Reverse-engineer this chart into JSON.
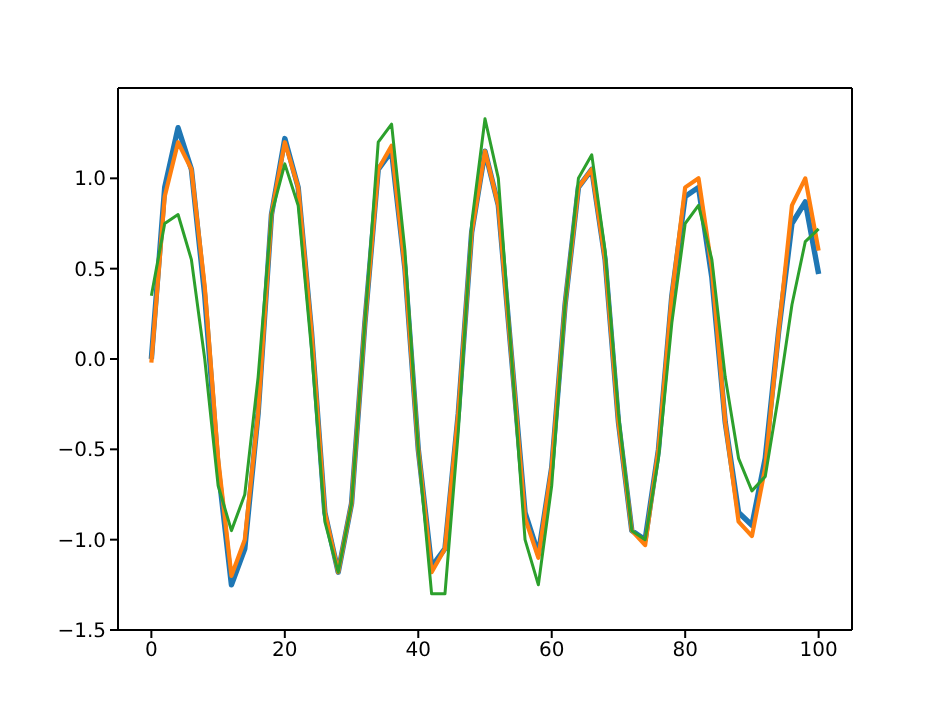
{
  "chart_data": {
    "type": "line",
    "x": [
      0,
      2,
      4,
      6,
      8,
      10,
      12,
      14,
      16,
      18,
      20,
      22,
      24,
      26,
      28,
      30,
      32,
      34,
      36,
      38,
      40,
      42,
      44,
      46,
      48,
      50,
      52,
      54,
      56,
      58,
      60,
      62,
      64,
      66,
      68,
      70,
      72,
      74,
      76,
      78,
      80,
      82,
      84,
      86,
      88,
      90,
      92,
      94,
      96,
      98,
      100
    ],
    "series": [
      {
        "color": "#1f77b4",
        "values": [
          0.0,
          0.95,
          1.28,
          1.05,
          0.35,
          -0.6,
          -1.25,
          -1.05,
          -0.3,
          0.8,
          1.22,
          0.95,
          0.15,
          -0.85,
          -1.18,
          -0.8,
          0.2,
          1.05,
          1.15,
          0.5,
          -0.5,
          -1.15,
          -1.05,
          -0.3,
          0.7,
          1.15,
          0.85,
          0.0,
          -0.85,
          -1.08,
          -0.6,
          0.3,
          0.95,
          1.05,
          0.55,
          -0.35,
          -0.95,
          -1.0,
          -0.5,
          0.35,
          0.9,
          0.95,
          0.45,
          -0.35,
          -0.85,
          -0.92,
          -0.55,
          0.15,
          0.75,
          0.87,
          0.47
        ]
      },
      {
        "color": "#ff7f0e",
        "values": [
          -0.02,
          0.9,
          1.2,
          1.05,
          0.4,
          -0.55,
          -1.2,
          -1.0,
          -0.3,
          0.8,
          1.2,
          0.95,
          0.15,
          -0.85,
          -1.18,
          -0.8,
          0.2,
          1.05,
          1.18,
          0.5,
          -0.5,
          -1.18,
          -1.05,
          -0.3,
          0.7,
          1.15,
          0.85,
          0.0,
          -0.88,
          -1.1,
          -0.6,
          0.3,
          0.95,
          1.05,
          0.55,
          -0.35,
          -0.95,
          -1.03,
          -0.5,
          0.35,
          0.95,
          1.0,
          0.5,
          -0.35,
          -0.9,
          -0.98,
          -0.6,
          0.15,
          0.85,
          1.0,
          0.6
        ]
      },
      {
        "color": "#2ca02c",
        "values": [
          0.35,
          0.75,
          0.8,
          0.55,
          0.0,
          -0.7,
          -0.95,
          -0.75,
          -0.1,
          0.8,
          1.08,
          0.85,
          0.05,
          -0.9,
          -1.18,
          -0.8,
          0.2,
          1.2,
          1.3,
          0.6,
          -0.5,
          -1.3,
          -1.3,
          -0.4,
          0.75,
          1.33,
          1.0,
          0.0,
          -1.0,
          -1.25,
          -0.7,
          0.3,
          1.0,
          1.13,
          0.6,
          -0.3,
          -0.95,
          -1.0,
          -0.55,
          0.2,
          0.75,
          0.85,
          0.55,
          -0.1,
          -0.55,
          -0.73,
          -0.65,
          -0.2,
          0.3,
          0.65,
          0.72
        ]
      }
    ],
    "xlim": [
      -5,
      105
    ],
    "xticks": [
      0,
      20,
      40,
      60,
      80,
      100
    ],
    "ylim": [
      -1.5,
      1.5
    ],
    "yticks": [
      {
        "value": -1.5,
        "label": "−1.5"
      },
      {
        "value": -1,
        "label": "−1.0"
      },
      {
        "value": -0.5,
        "label": "−0.5"
      },
      {
        "value": 0,
        "label": "0.0"
      },
      {
        "value": 0.5,
        "label": "0.5"
      },
      {
        "value": 1,
        "label": "1.0"
      }
    ],
    "grid": false,
    "legend": false,
    "marker": "none",
    "line_style": "solid"
  }
}
